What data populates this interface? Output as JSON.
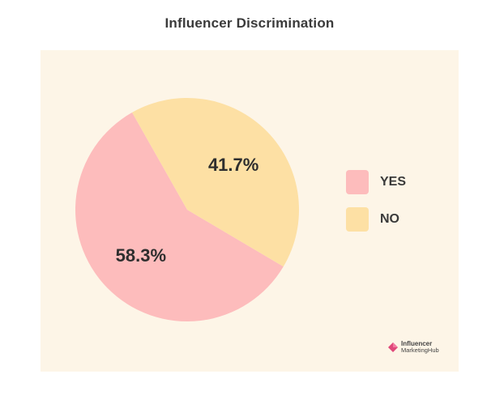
{
  "chart_data": {
    "type": "pie",
    "title": "Influencer Discrimination",
    "categories": [
      "YES",
      "NO"
    ],
    "values": [
      58.3,
      41.7
    ],
    "data_labels": [
      "58.3%",
      "41.7%"
    ],
    "colors": [
      "#fdbcbc",
      "#fde0a4"
    ],
    "legend_position": "right",
    "background": "#fdf5e7"
  },
  "logo": {
    "line1": "Influencer",
    "line2": "MarketingHub",
    "mark_color": "#e0487a"
  }
}
